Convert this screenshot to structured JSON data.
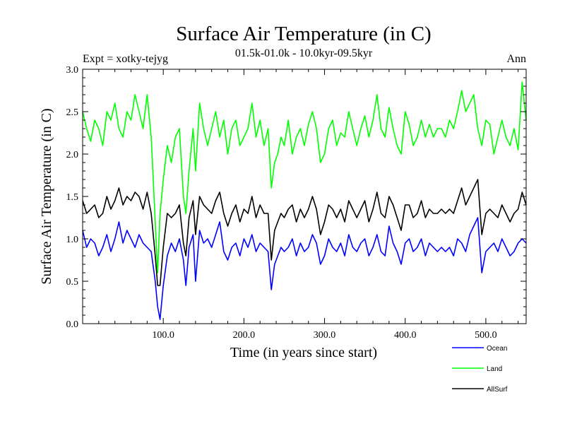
{
  "chart_data": {
    "type": "line",
    "title": "Surface Air Temperature (in C)",
    "subtitle": "01.5k-01.0k - 10.0kyr-09.5kyr",
    "left_annotation": "Expt = xotky-tejyg",
    "right_annotation": "Ann",
    "xlabel": "Time (in years since start)",
    "ylabel": "Surface Air Temperature (in C)",
    "xlim": [
      0,
      550
    ],
    "ylim": [
      0,
      3.0
    ],
    "x_ticks": [
      100,
      200,
      300,
      400,
      500
    ],
    "x_tick_labels": [
      "100.0",
      "200.0",
      "300.0",
      "400.0",
      "500.0"
    ],
    "y_ticks": [
      0,
      0.5,
      1.0,
      1.5,
      2.0,
      2.5,
      3.0
    ],
    "y_tick_labels": [
      "0.0",
      "0.5",
      "1.0",
      "1.5",
      "2.0",
      "2.5",
      "3.0"
    ],
    "legend_position": "bottom-right, below plot",
    "series_x": [
      0,
      5,
      10,
      15,
      20,
      25,
      30,
      35,
      40,
      45,
      50,
      55,
      60,
      65,
      70,
      75,
      80,
      85,
      90,
      93,
      96,
      100,
      105,
      110,
      115,
      120,
      125,
      128,
      132,
      137,
      140,
      145,
      150,
      155,
      160,
      165,
      170,
      175,
      180,
      185,
      190,
      195,
      200,
      205,
      210,
      215,
      220,
      225,
      230,
      234,
      238,
      242,
      246,
      250,
      255,
      260,
      265,
      270,
      275,
      280,
      285,
      290,
      295,
      300,
      305,
      310,
      315,
      320,
      325,
      330,
      335,
      340,
      345,
      350,
      355,
      360,
      365,
      370,
      375,
      380,
      385,
      390,
      395,
      400,
      405,
      410,
      415,
      420,
      425,
      430,
      435,
      440,
      445,
      450,
      455,
      460,
      465,
      470,
      475,
      480,
      485,
      490,
      495,
      500,
      505,
      510,
      515,
      520,
      525,
      530,
      535,
      540,
      545,
      550
    ],
    "series": [
      {
        "name": "Ocean",
        "color": "#0000ff",
        "values": [
          1.1,
          0.9,
          1.0,
          0.95,
          0.8,
          0.9,
          1.05,
          0.85,
          1.0,
          1.2,
          0.95,
          1.1,
          1.0,
          0.9,
          1.05,
          0.95,
          0.9,
          0.85,
          0.5,
          0.2,
          0.05,
          0.45,
          0.8,
          0.95,
          0.85,
          1.0,
          0.75,
          0.45,
          0.9,
          1.05,
          0.5,
          1.1,
          0.95,
          1.0,
          0.9,
          1.05,
          1.2,
          0.85,
          0.75,
          0.9,
          0.95,
          0.8,
          1.0,
          0.9,
          1.05,
          0.85,
          0.95,
          0.9,
          0.85,
          0.4,
          0.7,
          0.8,
          0.9,
          0.85,
          0.9,
          1.0,
          0.8,
          0.95,
          0.85,
          0.9,
          1.05,
          0.95,
          0.7,
          0.8,
          1.0,
          0.9,
          0.85,
          0.95,
          0.8,
          1.05,
          0.9,
          0.85,
          0.95,
          1.0,
          0.8,
          0.9,
          1.05,
          0.85,
          0.8,
          1.15,
          0.95,
          0.85,
          0.7,
          0.95,
          1.0,
          0.85,
          0.9,
          1.0,
          0.8,
          0.95,
          0.9,
          0.85,
          0.9,
          0.85,
          0.9,
          0.8,
          1.0,
          0.95,
          0.85,
          1.05,
          1.15,
          1.25,
          0.6,
          0.85,
          0.9,
          0.95,
          0.85,
          1.0,
          0.9,
          0.8,
          0.85,
          0.95,
          1.0,
          0.95
        ]
      },
      {
        "name": "Land",
        "color": "#00ff00",
        "values": [
          2.5,
          2.3,
          2.15,
          2.4,
          2.3,
          2.1,
          2.5,
          2.4,
          2.6,
          2.3,
          2.2,
          2.5,
          2.4,
          2.7,
          2.5,
          2.3,
          2.7,
          2.2,
          1.2,
          0.6,
          1.3,
          1.7,
          2.1,
          1.9,
          2.2,
          2.3,
          1.5,
          1.3,
          1.8,
          2.3,
          1.8,
          2.6,
          2.3,
          2.1,
          2.3,
          2.5,
          2.2,
          2.4,
          2.0,
          2.3,
          2.4,
          2.1,
          2.2,
          2.3,
          2.6,
          2.2,
          2.4,
          2.1,
          2.3,
          1.6,
          1.9,
          2.0,
          2.2,
          2.1,
          2.4,
          2.0,
          2.2,
          2.3,
          2.1,
          2.35,
          2.5,
          2.3,
          1.9,
          2.0,
          2.3,
          2.4,
          2.1,
          2.25,
          2.2,
          2.5,
          2.3,
          2.1,
          2.3,
          2.45,
          2.2,
          2.4,
          2.7,
          2.3,
          2.2,
          2.55,
          2.3,
          2.1,
          2.0,
          2.5,
          2.35,
          2.1,
          2.2,
          2.4,
          2.2,
          2.35,
          2.2,
          2.3,
          2.3,
          2.2,
          2.4,
          2.3,
          2.5,
          2.75,
          2.5,
          2.6,
          2.7,
          2.3,
          2.1,
          2.4,
          2.35,
          2.0,
          2.2,
          2.4,
          2.2,
          2.1,
          2.3,
          2.05,
          2.85,
          2.4
        ]
      },
      {
        "name": "AllSurf",
        "color": "#000000",
        "values": [
          1.45,
          1.3,
          1.35,
          1.4,
          1.25,
          1.3,
          1.5,
          1.35,
          1.45,
          1.6,
          1.4,
          1.5,
          1.45,
          1.55,
          1.5,
          1.35,
          1.55,
          1.3,
          0.8,
          0.45,
          0.45,
          0.9,
          1.3,
          1.25,
          1.3,
          1.4,
          0.95,
          0.8,
          1.25,
          1.45,
          1.05,
          1.5,
          1.4,
          1.35,
          1.3,
          1.45,
          1.55,
          1.3,
          1.15,
          1.3,
          1.4,
          1.2,
          1.35,
          1.3,
          1.5,
          1.25,
          1.4,
          1.3,
          1.3,
          0.75,
          1.1,
          1.2,
          1.3,
          1.25,
          1.35,
          1.4,
          1.2,
          1.35,
          1.25,
          1.35,
          1.5,
          1.35,
          1.05,
          1.2,
          1.4,
          1.35,
          1.25,
          1.35,
          1.2,
          1.45,
          1.35,
          1.25,
          1.35,
          1.45,
          1.2,
          1.35,
          1.55,
          1.3,
          1.25,
          1.5,
          1.4,
          1.25,
          1.1,
          1.4,
          1.4,
          1.25,
          1.3,
          1.45,
          1.25,
          1.35,
          1.3,
          1.3,
          1.35,
          1.3,
          1.35,
          1.3,
          1.45,
          1.6,
          1.4,
          1.5,
          1.6,
          1.7,
          1.05,
          1.3,
          1.35,
          1.3,
          1.25,
          1.4,
          1.3,
          1.2,
          1.3,
          1.35,
          1.55,
          1.4
        ]
      }
    ]
  }
}
